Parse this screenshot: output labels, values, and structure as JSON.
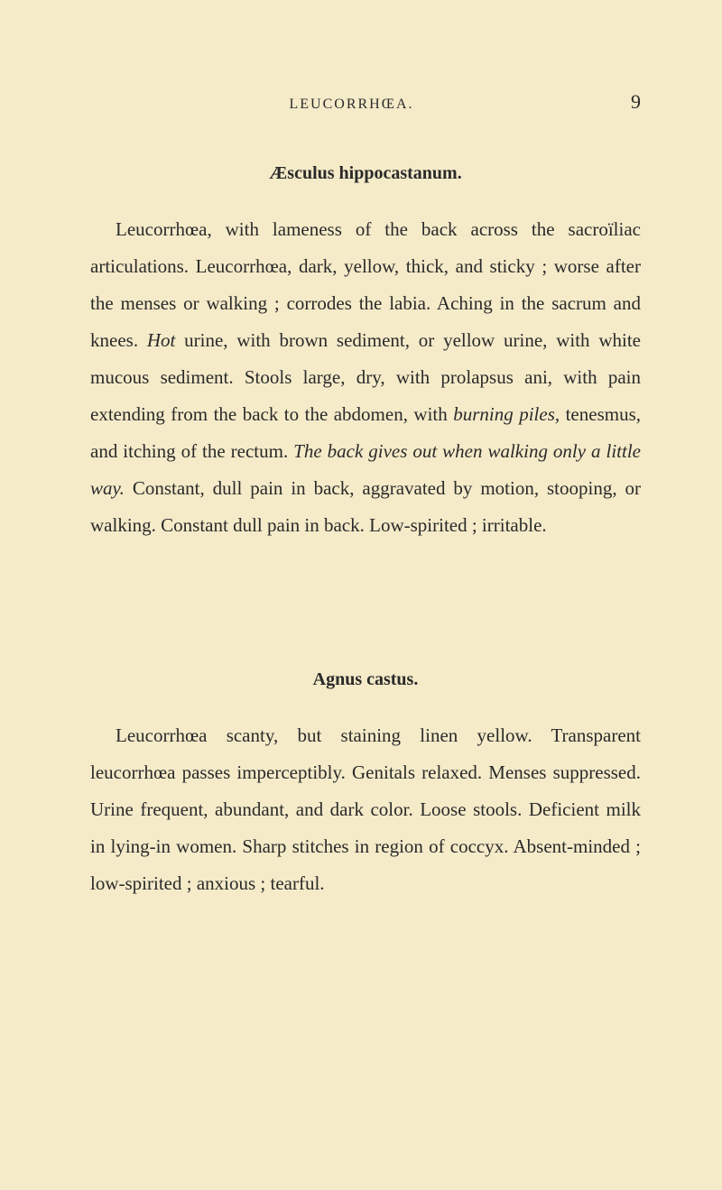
{
  "page": {
    "running_title": "LEUCORRHŒA.",
    "page_number": "9"
  },
  "sections": [
    {
      "title": "Æsculus hippocastanum.",
      "paragraph_parts": [
        {
          "text": "Leucorrhœa, with lameness of the back across the sacroïliac articulations. Leucorrhœa, dark, yellow, thick, and sticky ; worse after the menses or walking ; corrodes the labia. Aching in the sacrum and knees. ",
          "italic": false
        },
        {
          "text": "Hot",
          "italic": true
        },
        {
          "text": " urine, with brown sediment, or yellow urine, with white mucous sediment. Stools large, dry, with prolapsus ani, with pain extending from the back to the abdomen, with ",
          "italic": false
        },
        {
          "text": "burning piles",
          "italic": true
        },
        {
          "text": ", tenesmus, and itching of the rectum. ",
          "italic": false
        },
        {
          "text": "The back gives out when walking only a little way.",
          "italic": true
        },
        {
          "text": " Constant, dull pain in back, aggravated by motion, stooping, or walking. Constant dull pain in back. Low-spirited ; irritable.",
          "italic": false
        }
      ]
    },
    {
      "title": "Agnus castus.",
      "paragraph_parts": [
        {
          "text": "Leucorrhœa scanty, but staining linen yellow. Transparent leucorrhœa passes imperceptibly. Genitals relaxed. Menses suppressed. Urine frequent, abundant, and dark color. Loose stools. Deficient milk in lying-in women. Sharp stitches in region of coccyx. Absent-minded ; low-spirited ; anxious ; tearful.",
          "italic": false
        }
      ]
    }
  ],
  "styles": {
    "background_color": "#f5ebc9",
    "text_color": "#2a2a2a",
    "body_font_size": 21,
    "title_font_size": 20,
    "header_font_size": 16,
    "page_number_font_size": 22,
    "line_height": 1.95
  }
}
